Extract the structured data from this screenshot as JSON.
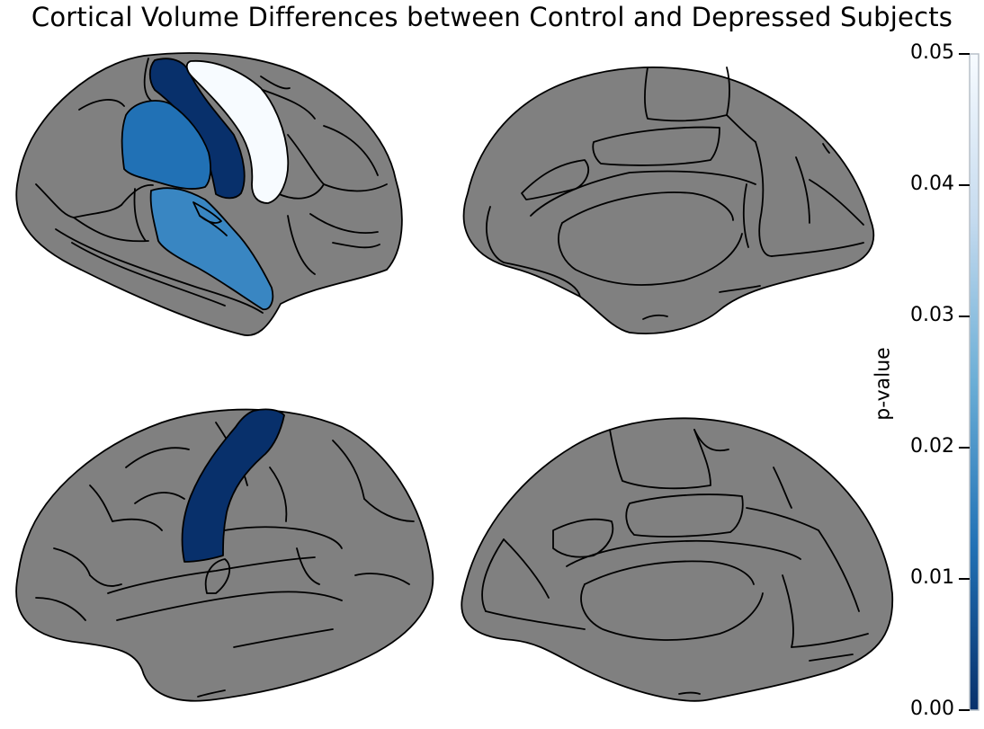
{
  "title": "Cortical Volume Differences between Control and Depressed Subjects",
  "colorbar": {
    "label": "p-value",
    "ticks": [
      "0.00",
      "0.01",
      "0.02",
      "0.03",
      "0.04",
      "0.05"
    ],
    "range": [
      0,
      0.05
    ],
    "colormap": "Blues_r",
    "colors": [
      "#08306b",
      "#2171b5",
      "#6baed6",
      "#c6dbef",
      "#f7fbff"
    ]
  },
  "brain_colors": {
    "non_significant": "#808080",
    "outline": "#000000"
  },
  "views": [
    {
      "name": "left-lateral",
      "regions": [
        {
          "name": "precentral",
          "p_value": 0.001
        },
        {
          "name": "postcentral",
          "p_value": 0.049
        },
        {
          "name": "pars-region-frontal",
          "p_value": 0.013
        },
        {
          "name": "superior-temporal",
          "p_value": 0.016
        }
      ]
    },
    {
      "name": "left-medial",
      "regions": []
    },
    {
      "name": "right-lateral",
      "regions": [
        {
          "name": "precentral",
          "p_value": 0.001
        }
      ]
    },
    {
      "name": "right-medial",
      "regions": []
    }
  ]
}
